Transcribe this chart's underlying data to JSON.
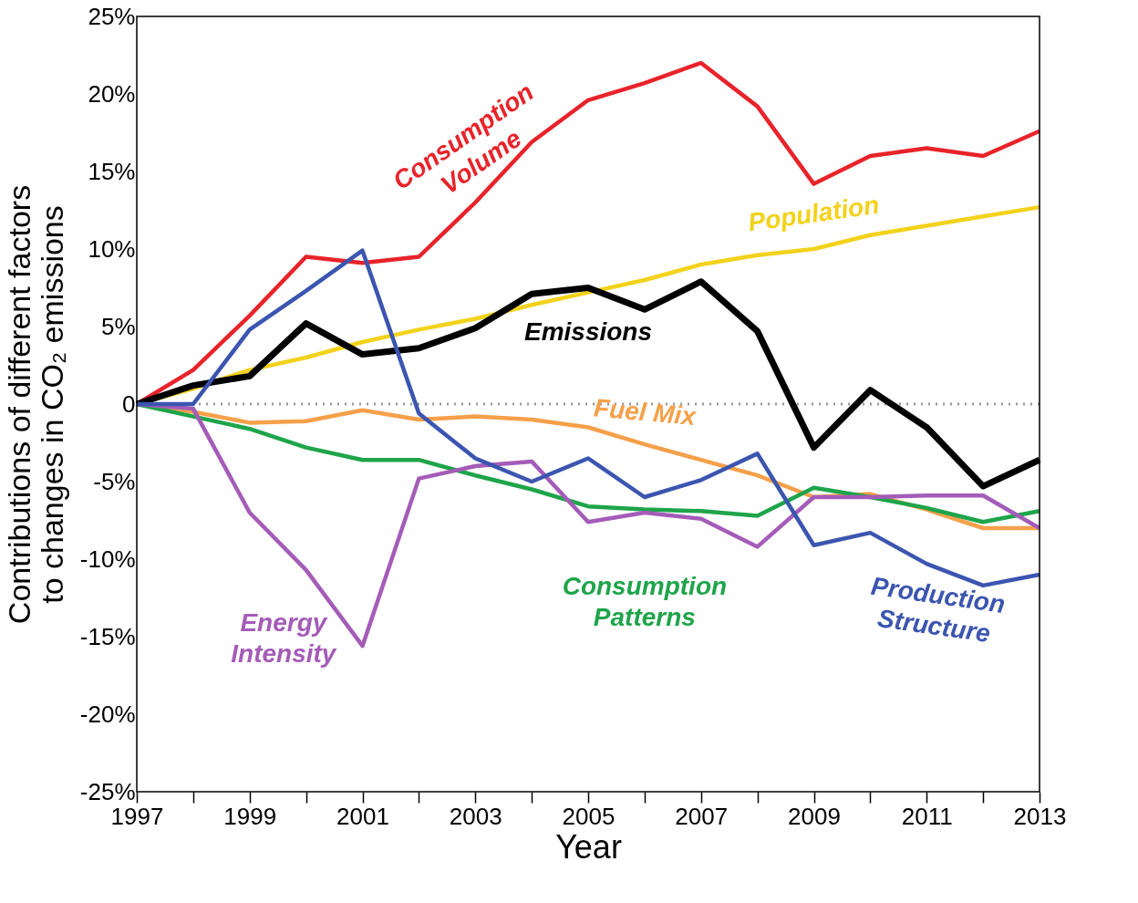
{
  "chart_data": {
    "type": "line",
    "xlabel": "Year",
    "ylabel": "Contributions of different factors\nto changes in CO₂ emissions",
    "x": [
      1997,
      1998,
      1999,
      2000,
      2001,
      2002,
      2003,
      2004,
      2005,
      2006,
      2007,
      2008,
      2009,
      2010,
      2011,
      2012,
      2013
    ],
    "series": [
      {
        "name": "Consumption Volume",
        "color": "#e8232a",
        "values": [
          0,
          2.2,
          5.7,
          9.5,
          9.1,
          9.5,
          13.0,
          16.9,
          19.6,
          20.7,
          22.0,
          19.2,
          14.2,
          16.0,
          16.5,
          16.0,
          17.6
        ]
      },
      {
        "name": "Population",
        "color": "#f2d21b",
        "values": [
          0,
          1.0,
          2.2,
          3.0,
          4.0,
          4.8,
          5.5,
          6.4,
          7.2,
          8.0,
          9.0,
          9.6,
          10.0,
          10.9,
          11.5,
          12.1,
          12.7
        ]
      },
      {
        "name": "Emissions",
        "color": "#000000",
        "values": [
          0,
          1.2,
          1.8,
          5.2,
          3.2,
          3.6,
          4.9,
          7.1,
          7.5,
          6.1,
          7.9,
          4.7,
          -2.8,
          0.9,
          -1.5,
          -5.3,
          -3.6
        ]
      },
      {
        "name": "Fuel Mix",
        "color": "#f5a04a",
        "values": [
          0,
          -0.5,
          -1.2,
          -1.1,
          -0.4,
          -1.0,
          -0.8,
          -1.0,
          -1.5,
          -2.6,
          -3.6,
          -4.6,
          -6.0,
          -5.8,
          -6.8,
          -8.0,
          -8.0
        ]
      },
      {
        "name": "Consumption Patterns",
        "color": "#1ea44a",
        "values": [
          0,
          -0.8,
          -1.6,
          -2.8,
          -3.6,
          -3.6,
          -4.6,
          -5.5,
          -6.6,
          -6.8,
          -6.9,
          -7.2,
          -5.4,
          -6.0,
          -6.7,
          -7.6,
          -6.9
        ]
      },
      {
        "name": "Energy Intensity",
        "color": "#a45cb8",
        "values": [
          0,
          -0.3,
          -7.0,
          -10.7,
          -15.6,
          -4.8,
          -4.0,
          -3.7,
          -7.6,
          -7.0,
          -7.4,
          -9.2,
          -6.0,
          -6.0,
          -5.9,
          -5.9,
          -8.0
        ]
      },
      {
        "name": "Production Structure",
        "color": "#3b55b0",
        "values": [
          0,
          0,
          4.8,
          7.3,
          9.9,
          -0.6,
          -3.5,
          -5.0,
          -3.5,
          -6.0,
          -4.9,
          -3.2,
          -9.1,
          -8.3,
          -10.3,
          -11.7,
          -11.0
        ]
      }
    ],
    "xlim": [
      1997,
      2013
    ],
    "xticks": [
      1997,
      {
        "value": 1998,
        "label": null
      },
      1999,
      {
        "value": 2000,
        "label": null
      },
      2001,
      {
        "value": 2002,
        "label": null
      },
      2003,
      {
        "value": 2004,
        "label": null
      },
      2005,
      {
        "value": 2006,
        "label": null
      },
      2007,
      {
        "value": 2008,
        "label": null
      },
      2009,
      {
        "value": 2010,
        "label": null
      },
      2011,
      {
        "value": 2012,
        "label": null
      },
      2013
    ],
    "ylim": [
      -25,
      25
    ],
    "yticks": [
      {
        "value": -25,
        "label": "-25%"
      },
      {
        "value": -20,
        "label": "-20%"
      },
      {
        "value": -15,
        "label": "-15%"
      },
      {
        "value": -10,
        "label": "-10%"
      },
      {
        "value": -5,
        "label": "-5%"
      },
      0,
      {
        "value": 5,
        "label": "5%"
      },
      {
        "value": 10,
        "label": "10%"
      },
      {
        "value": 15,
        "label": "15%"
      },
      {
        "value": 20,
        "label": "20%"
      },
      {
        "value": 25,
        "label": "25%"
      }
    ],
    "ref_lines": [
      {
        "axis": "y",
        "value": 0,
        "color": "#999999",
        "line_style": "dotted"
      }
    ],
    "grid": false,
    "legend": false,
    "marker": "none",
    "line_style": "solid"
  }
}
